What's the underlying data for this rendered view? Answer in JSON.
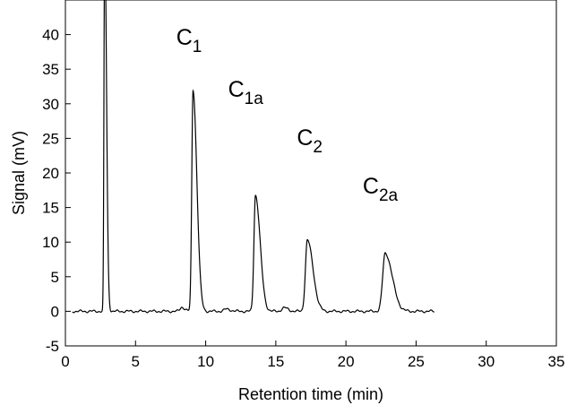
{
  "chart_data": {
    "type": "line",
    "xlabel": "Retention time (min)",
    "ylabel": "Signal (mV)",
    "xlim": [
      0,
      35
    ],
    "ylim": [
      -5,
      45
    ],
    "x_ticks": [
      0,
      5,
      10,
      15,
      20,
      25,
      30,
      35
    ],
    "y_ticks": [
      -5,
      0,
      5,
      10,
      15,
      20,
      25,
      30,
      35,
      40
    ],
    "grid": false,
    "legend": "none",
    "line_color": "#000000",
    "series": [
      {
        "peaks": [
          {
            "center": 2.8,
            "height": 55,
            "width": 0.05,
            "tail": 0.08
          },
          {
            "center": 8.3,
            "height": 0.6,
            "width": 0.12,
            "tail": 0.1
          },
          {
            "center": 9.1,
            "height": 32.0,
            "width": 0.09,
            "tail": 0.18
          },
          {
            "center": 11.5,
            "height": 0.3,
            "width": 0.2,
            "tail": 0.1
          },
          {
            "center": 13.55,
            "height": 16.8,
            "width": 0.11,
            "tail": 0.22
          },
          {
            "center": 15.6,
            "height": 0.5,
            "width": 0.18,
            "tail": 0.1
          },
          {
            "center": 17.25,
            "height": 10.3,
            "width": 0.14,
            "tail": 0.26
          },
          {
            "center": 22.8,
            "height": 8.4,
            "width": 0.18,
            "tail": 0.32
          }
        ],
        "x_range": [
          0.5,
          26.3
        ],
        "baseline": 0
      }
    ],
    "annotations": [
      {
        "text": "C",
        "sub": "1",
        "x": 7.9,
        "y": 38.5
      },
      {
        "text": "C",
        "sub": "1a",
        "x": 11.6,
        "y": 31.0
      },
      {
        "text": "C",
        "sub": "2",
        "x": 16.5,
        "y": 24.0
      },
      {
        "text": "C",
        "sub": "2a",
        "x": 21.2,
        "y": 17.0
      }
    ]
  }
}
